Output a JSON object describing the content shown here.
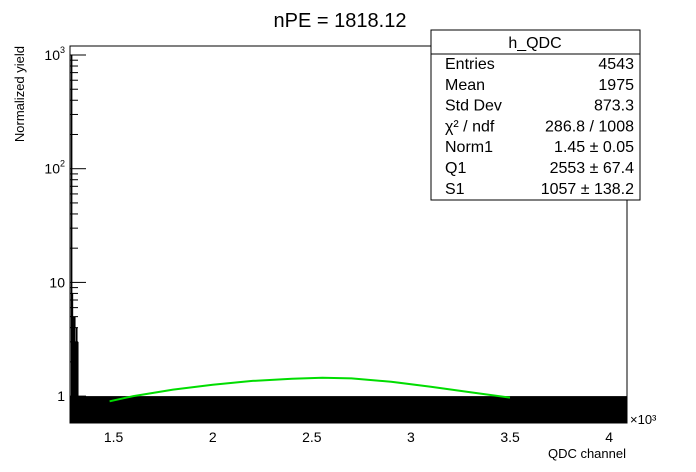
{
  "chart_data": {
    "type": "histogram",
    "title": "nPE = 1818.12",
    "xlabel": "QDC channel",
    "ylabel": "Normalized yield",
    "x_multiplier": "×10³",
    "xlim": [
      1.28,
      4.09
    ],
    "ylim_log": [
      0.58,
      1200
    ],
    "x_ticks": [
      {
        "value": 1.5,
        "label": "1.5"
      },
      {
        "value": 2.0,
        "label": "2"
      },
      {
        "value": 2.5,
        "label": "2.5"
      },
      {
        "value": 3.0,
        "label": "3"
      },
      {
        "value": 3.5,
        "label": "3.5"
      },
      {
        "value": 4.0,
        "label": "4"
      }
    ],
    "y_ticks": [
      {
        "value": 1,
        "label": "1"
      },
      {
        "value": 10,
        "label": "10"
      },
      {
        "value": 100,
        "label": "10²"
      },
      {
        "value": 1000,
        "label": "10³"
      }
    ],
    "y_minor_ticks": [
      2,
      3,
      4,
      5,
      6,
      7,
      8,
      9,
      20,
      30,
      40,
      50,
      60,
      70,
      80,
      90,
      200,
      300,
      400,
      500,
      600,
      700,
      800,
      900
    ],
    "spikes": [
      {
        "x": 1.288,
        "y": 1000
      },
      {
        "x": 1.292,
        "y": 8
      },
      {
        "x": 1.296,
        "y": 5
      },
      {
        "x": 1.3,
        "y": 4
      },
      {
        "x": 1.304,
        "y": 5
      },
      {
        "x": 1.309,
        "y": 3
      },
      {
        "x": 1.314,
        "y": 4
      },
      {
        "x": 1.319,
        "y": 3
      }
    ],
    "baseline_band": {
      "from": 1.28,
      "to": 4.09,
      "y": 1
    },
    "fit_curve": {
      "name": "fit",
      "color": "#00dd00",
      "x": [
        1.48,
        1.6,
        1.8,
        2.0,
        2.2,
        2.4,
        2.553,
        2.7,
        2.9,
        3.1,
        3.3,
        3.5
      ],
      "y": [
        0.9,
        1.0,
        1.14,
        1.26,
        1.36,
        1.42,
        1.45,
        1.43,
        1.34,
        1.21,
        1.08,
        0.97
      ]
    },
    "stats_box": {
      "name": "h_QDC",
      "rows": [
        {
          "label": "Entries",
          "value": "4543"
        },
        {
          "label": "Mean",
          "value": "1975"
        },
        {
          "label": "Std Dev",
          "value": "873.3"
        },
        {
          "label": "χ² / ndf",
          "value": "286.8 / 1008"
        },
        {
          "label": "Norm1",
          "value": "1.45 ± 0.05"
        },
        {
          "label": "Q1",
          "value": "2553 ± 67.4"
        },
        {
          "label": "S1",
          "value": "1057 ± 138.2"
        }
      ]
    }
  }
}
